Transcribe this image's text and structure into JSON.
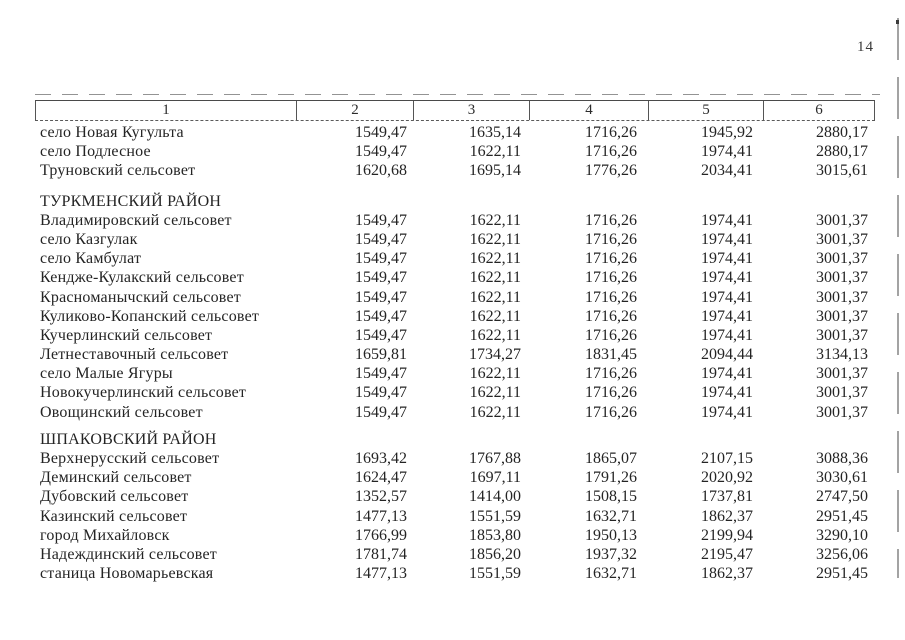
{
  "page": {
    "number": "14"
  },
  "table": {
    "header_columns": [
      "1",
      "2",
      "3",
      "4",
      "5",
      "6"
    ],
    "sections": [
      {
        "title": "",
        "rows": [
          {
            "name": "село Новая Кугульта",
            "values": [
              "1549,47",
              "1635,14",
              "1716,26",
              "1945,92",
              "2880,17"
            ]
          },
          {
            "name": "село Подлесное",
            "values": [
              "1549,47",
              "1622,11",
              "1716,26",
              "1974,41",
              "2880,17"
            ]
          },
          {
            "name": "Труновский сельсовет",
            "values": [
              "1620,68",
              "1695,14",
              "1776,26",
              "2034,41",
              "3015,61"
            ]
          }
        ]
      },
      {
        "title": "ТУРКМЕНСКИЙ РАЙОН",
        "rows": [
          {
            "name": "Владимировский сельсовет",
            "values": [
              "1549,47",
              "1622,11",
              "1716,26",
              "1974,41",
              "3001,37"
            ]
          },
          {
            "name": "село Казгулак",
            "values": [
              "1549,47",
              "1622,11",
              "1716,26",
              "1974,41",
              "3001,37"
            ]
          },
          {
            "name": "село Камбулат",
            "values": [
              "1549,47",
              "1622,11",
              "1716,26",
              "1974,41",
              "3001,37"
            ]
          },
          {
            "name": "Кендже-Кулакский сельсовет",
            "values": [
              "1549,47",
              "1622,11",
              "1716,26",
              "1974,41",
              "3001,37"
            ]
          },
          {
            "name": "Красноманычский сельсовет",
            "values": [
              "1549,47",
              "1622,11",
              "1716,26",
              "1974,41",
              "3001,37"
            ]
          },
          {
            "name": "Куликово-Копанский сельсовет",
            "values": [
              "1549,47",
              "1622,11",
              "1716,26",
              "1974,41",
              "3001,37"
            ]
          },
          {
            "name": "Кучерлинский сельсовет",
            "values": [
              "1549,47",
              "1622,11",
              "1716,26",
              "1974,41",
              "3001,37"
            ]
          },
          {
            "name": "Летнеставочный сельсовет",
            "values": [
              "1659,81",
              "1734,27",
              "1831,45",
              "2094,44",
              "3134,13"
            ]
          },
          {
            "name": "село Малые Ягуры",
            "values": [
              "1549,47",
              "1622,11",
              "1716,26",
              "1974,41",
              "3001,37"
            ]
          },
          {
            "name": "Новокучерлинский сельсовет",
            "values": [
              "1549,47",
              "1622,11",
              "1716,26",
              "1974,41",
              "3001,37"
            ]
          },
          {
            "name": "Овощинский сельсовет",
            "values": [
              "1549,47",
              "1622,11",
              "1716,26",
              "1974,41",
              "3001,37"
            ]
          }
        ]
      },
      {
        "title": "ШПАКОВСКИЙ РАЙОН",
        "rows": [
          {
            "name": "Верхнерусский сельсовет",
            "values": [
              "1693,42",
              "1767,88",
              "1865,07",
              "2107,15",
              "3088,36"
            ]
          },
          {
            "name": "Деминский сельсовет",
            "values": [
              "1624,47",
              "1697,11",
              "1791,26",
              "2020,92",
              "3030,61"
            ]
          },
          {
            "name": "Дубовский сельсовет",
            "values": [
              "1352,57",
              "1414,00",
              "1508,15",
              "1737,81",
              "2747,50"
            ]
          },
          {
            "name": "Казинский сельсовет",
            "values": [
              "1477,13",
              "1551,59",
              "1632,71",
              "1862,37",
              "2951,45"
            ]
          },
          {
            "name": "город Михайловск",
            "values": [
              "1766,99",
              "1853,80",
              "1950,13",
              "2199,94",
              "3290,10"
            ]
          },
          {
            "name": "Надеждинский сельсовет",
            "values": [
              "1781,74",
              "1856,20",
              "1937,32",
              "2195,47",
              "3256,06"
            ]
          },
          {
            "name": "станица Новомарьевская",
            "values": [
              "1477,13",
              "1551,59",
              "1632,71",
              "1862,37",
              "2951,45"
            ]
          }
        ]
      }
    ]
  }
}
